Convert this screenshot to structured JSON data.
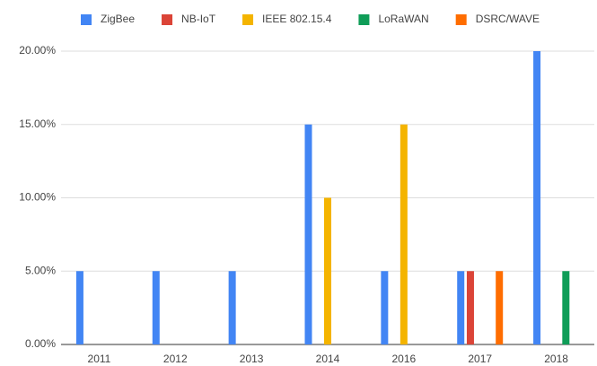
{
  "chart_data": {
    "type": "bar",
    "categories": [
      "2011",
      "2012",
      "2013",
      "2014",
      "2016",
      "2017",
      "2018"
    ],
    "series": [
      {
        "name": "ZigBee",
        "color": "#4285f4",
        "values": [
          5,
          5,
          5,
          15,
          5,
          5,
          20
        ]
      },
      {
        "name": "NB-IoT",
        "color": "#db4437",
        "values": [
          0,
          0,
          0,
          0,
          0,
          5,
          0
        ]
      },
      {
        "name": "IEEE 802.15.4",
        "color": "#f4b400",
        "values": [
          0,
          0,
          0,
          10,
          15,
          0,
          0
        ]
      },
      {
        "name": "LoRaWAN",
        "color": "#0f9d58",
        "values": [
          0,
          0,
          0,
          0,
          0,
          0,
          5
        ]
      },
      {
        "name": "DSRC/WAVE",
        "color": "#ff6d00",
        "values": [
          0,
          0,
          0,
          0,
          0,
          5,
          0
        ]
      }
    ],
    "ylim": [
      0,
      20
    ],
    "yticks": [
      {
        "value": 0,
        "label": "0.00%"
      },
      {
        "value": 5,
        "label": "5.00%"
      },
      {
        "value": 10,
        "label": "10.00%"
      },
      {
        "value": 15,
        "label": "15.00%"
      },
      {
        "value": 20,
        "label": "20.00%"
      }
    ],
    "grid": true,
    "legend": "top"
  }
}
